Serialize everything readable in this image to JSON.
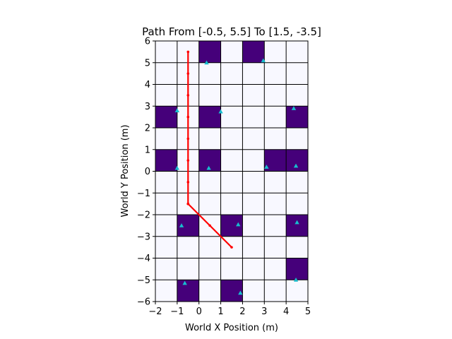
{
  "chart_data": {
    "type": "scatter",
    "title": "Path From [-0.5, 5.5] To [1.5, -3.5]",
    "xlabel": "World X Position (m)",
    "ylabel": "World Y Position (m)",
    "xlim": [
      -2,
      5
    ],
    "ylim": [
      -6,
      6
    ],
    "xticks": [
      -2,
      -1,
      0,
      1,
      2,
      3,
      4,
      5
    ],
    "yticks": [
      -6,
      -5,
      -4,
      -3,
      -2,
      -1,
      0,
      1,
      2,
      3,
      4,
      5,
      6
    ],
    "xtick_labels": [
      "−2",
      "−1",
      "0",
      "1",
      "2",
      "3",
      "4",
      "5"
    ],
    "ytick_labels": [
      "−6",
      "−5",
      "−4",
      "−3",
      "−2",
      "−1",
      "0",
      "1",
      "2",
      "3",
      "4",
      "5",
      "6"
    ],
    "grid": true,
    "colors": {
      "free_cell": "#f8f8ff",
      "occupied_cell": "#45007a",
      "grid_line": "#000000",
      "path": "#ff0000",
      "landmark": "#17becf"
    },
    "occupied_cells": [
      [
        0,
        5
      ],
      [
        2,
        5
      ],
      [
        -2,
        2
      ],
      [
        0,
        2
      ],
      [
        4,
        2
      ],
      [
        -2,
        0
      ],
      [
        0,
        0
      ],
      [
        3,
        0
      ],
      [
        4,
        0
      ],
      [
        -1,
        -3
      ],
      [
        1,
        -3
      ],
      [
        4,
        -3
      ],
      [
        4,
        -5
      ],
      [
        -1,
        -6
      ],
      [
        1,
        -6
      ]
    ],
    "path": {
      "x": [
        -0.5,
        -0.5,
        -0.5,
        -0.5,
        -0.5,
        -0.5,
        -0.5,
        -0.5,
        -0.5,
        -0.5,
        -0.5,
        0.5,
        1.5
      ],
      "y": [
        5.5,
        4.5,
        3.5,
        2.5,
        1.5,
        0.5,
        -0.5,
        -1.5,
        -1.5,
        -1.5,
        -1.5,
        -2.5,
        -3.5
      ]
    },
    "landmarks": {
      "x": [
        0.35,
        2.95,
        -1.0,
        1.0,
        4.35,
        -1.0,
        0.45,
        3.1,
        4.45,
        -0.8,
        1.8,
        4.5,
        4.45,
        -0.65,
        1.9
      ],
      "y": [
        5.0,
        5.1,
        2.8,
        2.75,
        2.9,
        0.15,
        0.15,
        0.2,
        0.25,
        -2.5,
        -2.45,
        -2.35,
        -5.0,
        -5.15,
        -5.6
      ]
    }
  }
}
